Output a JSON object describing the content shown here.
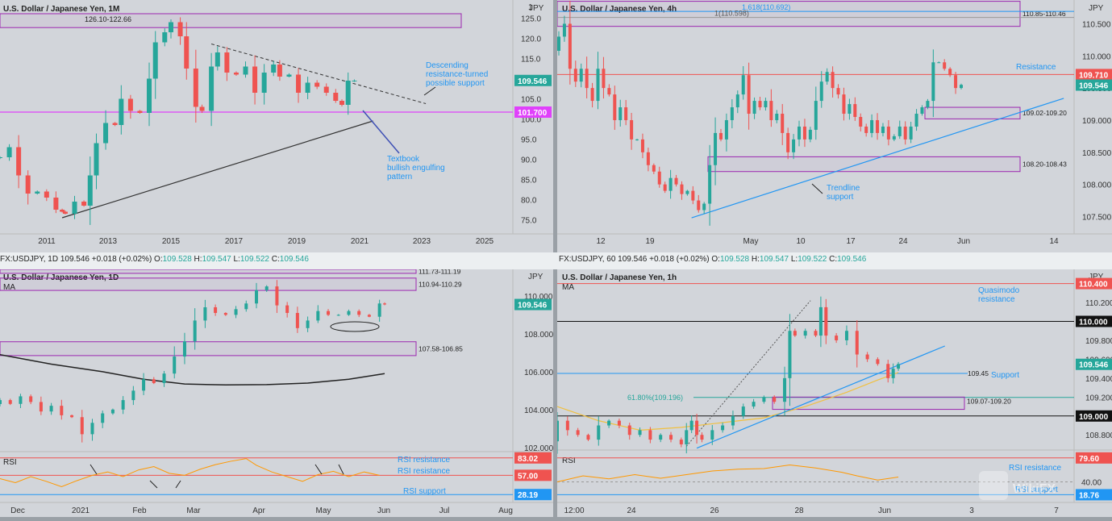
{
  "chart_data": [
    {
      "id": "monthly",
      "type": "candlestick",
      "title": "U.S. Dollar / Japanese Yen, 1M",
      "unit_label": "JPY",
      "y_ticks": [
        125.0,
        120.0,
        115.0,
        110.0,
        105.0,
        100.0,
        95.0,
        90.0,
        85.0,
        80.0,
        75.0
      ],
      "ylim": [
        71.5,
        129.5
      ],
      "y_label_top": "1",
      "x_ticks": [
        "2011",
        "2013",
        "2015",
        "2017",
        "2019",
        "2021",
        "2023",
        "2025"
      ],
      "xlim": [
        2010.0,
        2026.5
      ],
      "price_close": 109.546,
      "level_line": 101.7,
      "zone": {
        "label": "126.10-122.66",
        "high": 126.1,
        "low": 122.66
      },
      "trendline_up": [
        {
          "x": 2012.0,
          "y": 75.5
        },
        {
          "x": 2022.0,
          "y": 99.5
        }
      ],
      "trendline_down": [
        {
          "x": 2016.8,
          "y": 118.6
        },
        {
          "x": 2023.7,
          "y": 103.8
        }
      ],
      "annotations": [
        "Descending resistance-turned possible support",
        "Textbook bullish engulfing pattern"
      ],
      "candles": [
        [
          2010.0,
          90.5
        ],
        [
          2010.3,
          93.0
        ],
        [
          2010.6,
          86.0
        ],
        [
          2010.9,
          81.5
        ],
        [
          2011.2,
          82.0
        ],
        [
          2011.5,
          80.5
        ],
        [
          2011.8,
          77.5
        ],
        [
          2012.0,
          77.0
        ],
        [
          2012.1,
          76.5
        ],
        [
          2012.4,
          79.5
        ],
        [
          2012.7,
          78.5
        ],
        [
          2012.9,
          86.0
        ],
        [
          2013.1,
          94.0
        ],
        [
          2013.4,
          99.0
        ],
        [
          2013.7,
          98.5
        ],
        [
          2013.9,
          105.0
        ],
        [
          2014.2,
          102.0
        ],
        [
          2014.5,
          101.5
        ],
        [
          2014.8,
          110.0
        ],
        [
          2015.0,
          119.0
        ],
        [
          2015.3,
          121.5
        ],
        [
          2015.5,
          124.0
        ],
        [
          2015.8,
          120.5
        ],
        [
          2016.0,
          112.5
        ],
        [
          2016.3,
          103.0
        ],
        [
          2016.5,
          102.0
        ],
        [
          2016.8,
          113.0
        ],
        [
          2017.0,
          116.5
        ],
        [
          2017.3,
          111.5
        ],
        [
          2017.6,
          111.0
        ],
        [
          2017.9,
          113.0
        ],
        [
          2018.2,
          106.5
        ],
        [
          2018.5,
          111.5
        ],
        [
          2018.8,
          113.5
        ],
        [
          2019.0,
          110.5
        ],
        [
          2019.3,
          111.0
        ],
        [
          2019.6,
          106.5
        ],
        [
          2019.9,
          109.0
        ],
        [
          2020.2,
          108.0
        ],
        [
          2020.5,
          106.5
        ],
        [
          2020.8,
          104.5
        ],
        [
          2021.0,
          103.5
        ],
        [
          2021.2,
          109.5
        ],
        [
          2021.4,
          109.5
        ]
      ]
    },
    {
      "id": "h4",
      "type": "candlestick",
      "title": "U.S. Dollar / Japanese Yen, 4h",
      "unit_label": "JPY",
      "y_ticks": [
        110.5,
        110.0,
        109.5,
        109.0,
        108.5,
        108.0,
        107.5
      ],
      "ylim": [
        107.23,
        110.87
      ],
      "x_ticks": [
        "12",
        "19",
        "May",
        "10",
        "17",
        "24",
        "Jun",
        "14"
      ],
      "xlim": [
        0,
        100
      ],
      "price_close": 109.546,
      "level_line": 109.71,
      "fib_levels": [
        {
          "label": "1.618(110.692)",
          "value": 110.692
        },
        {
          "label": "1(110.598)",
          "value": 110.598
        }
      ],
      "zones": [
        {
          "label": "110.85-110.46",
          "high": 110.85,
          "low": 110.46
        },
        {
          "label": "109.02-109.20",
          "high": 109.2,
          "low": 109.02
        },
        {
          "label": "108.20-108.43",
          "high": 108.43,
          "low": 108.2
        }
      ],
      "trendline": [
        {
          "x": 26.0,
          "y": 107.48
        },
        {
          "x": 98.0,
          "y": 109.34
        }
      ],
      "annotations": [
        "Resistance",
        "Trendline support"
      ],
      "candles": [
        [
          0,
          110.3
        ],
        [
          1,
          110.5
        ],
        [
          2,
          109.8
        ],
        [
          3,
          109.6
        ],
        [
          4,
          109.8
        ],
        [
          5,
          109.5
        ],
        [
          6,
          109.3
        ],
        [
          7,
          109.8
        ],
        [
          8,
          109.5
        ],
        [
          9,
          109.4
        ],
        [
          10,
          109.0
        ],
        [
          11,
          109.2
        ],
        [
          12,
          109.0
        ],
        [
          13,
          108.7
        ],
        [
          14,
          108.7
        ],
        [
          15,
          108.5
        ],
        [
          16,
          108.3
        ],
        [
          17,
          108.2
        ],
        [
          18,
          108.0
        ],
        [
          19,
          107.9
        ],
        [
          20,
          108.1
        ],
        [
          21,
          108.0
        ],
        [
          22,
          107.85
        ],
        [
          23,
          107.9
        ],
        [
          24,
          107.75
        ],
        [
          25,
          107.6
        ],
        [
          26,
          107.7
        ],
        [
          27,
          108.3
        ],
        [
          28,
          108.8
        ],
        [
          29,
          108.7
        ],
        [
          30,
          109.0
        ],
        [
          31,
          109.2
        ],
        [
          32,
          109.4
        ],
        [
          33,
          109.7
        ],
        [
          34,
          109.1
        ],
        [
          35,
          109.3
        ],
        [
          36,
          109.2
        ],
        [
          37,
          109.3
        ],
        [
          38,
          109.0
        ],
        [
          39,
          109.1
        ],
        [
          40,
          108.8
        ],
        [
          41,
          108.5
        ],
        [
          42,
          108.7
        ],
        [
          43,
          108.9
        ],
        [
          44,
          108.7
        ],
        [
          45,
          108.85
        ],
        [
          46,
          109.3
        ],
        [
          47,
          109.6
        ],
        [
          48,
          109.75
        ],
        [
          49,
          109.5
        ],
        [
          50,
          109.4
        ],
        [
          51,
          109.1
        ],
        [
          52,
          109.25
        ],
        [
          53,
          109.05
        ],
        [
          54,
          108.9
        ],
        [
          55,
          108.8
        ],
        [
          56,
          109.0
        ],
        [
          57,
          108.8
        ],
        [
          58,
          108.9
        ],
        [
          59,
          108.7
        ],
        [
          60,
          108.75
        ],
        [
          61,
          108.9
        ],
        [
          62,
          108.7
        ],
        [
          63,
          108.9
        ],
        [
          64,
          109.1
        ],
        [
          65,
          109.2
        ],
        [
          66,
          109.3
        ],
        [
          67,
          109.9
        ],
        [
          68,
          109.9
        ],
        [
          69,
          109.8
        ],
        [
          70,
          109.7
        ],
        [
          71,
          109.5
        ],
        [
          72,
          109.55
        ]
      ]
    },
    {
      "id": "daily",
      "type": "candlestick",
      "title": "U.S. Dollar / Japanese Yen, 1D",
      "indicator_label": "MA",
      "unit_label": "JPY",
      "ticker_line": {
        "symbol": "FX:USDJPY, 1D",
        "last": "109.546",
        "change": "+0.018 (+0.02%)",
        "o": "109.528",
        "h": "109.547",
        "l": "109.522",
        "c": "109.546"
      },
      "y_ticks": [
        110.0,
        108.0,
        106.0,
        104.0,
        102.0
      ],
      "ylim": [
        101.78,
        111.4
      ],
      "x_ticks": [
        "Dec",
        "2021",
        "Feb",
        "Mar",
        "Apr",
        "May",
        "Jun",
        "Jul",
        "Aug"
      ],
      "xlim": [
        0,
        100
      ],
      "price_close": 109.546,
      "zones": [
        {
          "label": "111.73-111.19",
          "high": 111.73,
          "low": 111.19
        },
        {
          "label": "110.94-110.29",
          "high": 110.94,
          "low": 110.29
        },
        {
          "label": "107.58-106.85",
          "high": 107.58,
          "low": 106.85
        }
      ],
      "moving_average": [
        [
          0,
          106.9
        ],
        [
          10,
          106.4
        ],
        [
          20,
          106.0
        ],
        [
          28,
          105.6
        ],
        [
          36,
          105.35
        ],
        [
          44,
          105.3
        ],
        [
          52,
          105.32
        ],
        [
          60,
          105.4
        ],
        [
          68,
          105.6
        ],
        [
          75,
          105.9
        ]
      ],
      "candles": [
        [
          0,
          104.5
        ],
        [
          2,
          104.3
        ],
        [
          4,
          104.7
        ],
        [
          6,
          104.4
        ],
        [
          8,
          103.9
        ],
        [
          10,
          104.2
        ],
        [
          12,
          103.7
        ],
        [
          14,
          103.6
        ],
        [
          16,
          102.7
        ],
        [
          18,
          103.3
        ],
        [
          20,
          103.8
        ],
        [
          22,
          104.0
        ],
        [
          24,
          104.5
        ],
        [
          26,
          105.0
        ],
        [
          28,
          105.6
        ],
        [
          30,
          105.4
        ],
        [
          32,
          105.9
        ],
        [
          34,
          106.8
        ],
        [
          36,
          107.6
        ],
        [
          38,
          108.7
        ],
        [
          40,
          109.4
        ],
        [
          42,
          109.1
        ],
        [
          44,
          109.0
        ],
        [
          46,
          109.3
        ],
        [
          48,
          109.6
        ],
        [
          50,
          110.3
        ],
        [
          52,
          110.5
        ],
        [
          54,
          109.5
        ],
        [
          56,
          109.1
        ],
        [
          58,
          108.3
        ],
        [
          60,
          108.7
        ],
        [
          62,
          109.2
        ],
        [
          64,
          109.0
        ],
        [
          66,
          109.0
        ],
        [
          68,
          109.2
        ],
        [
          70,
          109.0
        ],
        [
          72,
          108.9
        ],
        [
          74,
          109.6
        ],
        [
          75,
          109.55
        ]
      ]
    },
    {
      "id": "h1",
      "type": "candlestick",
      "title": "U.S. Dollar / Japanese Yen, 1h",
      "indicator_label": "MA",
      "unit_label": "JPY",
      "ticker_line": {
        "symbol": "FX:USDJPY, 60",
        "last": "109.546",
        "change": "+0.018 (+0.02%)",
        "o": "109.528",
        "h": "109.547",
        "l": "109.522",
        "c": "109.546"
      },
      "y_ticks": [
        110.2,
        110.0,
        109.8,
        109.6,
        109.4,
        109.2,
        109.0,
        108.8
      ],
      "ylim": [
        108.64,
        110.55
      ],
      "x_ticks": [
        "12:00",
        "24",
        "26",
        "28",
        "Jun",
        "3",
        "7"
      ],
      "xlim": [
        0,
        100
      ],
      "price_close": 109.546,
      "levels": [
        {
          "value": 110.4,
          "label": "110.400"
        },
        {
          "value": 110.0,
          "label": "110.000"
        },
        {
          "value": 109.0,
          "label": "109.000"
        }
      ],
      "support_line": {
        "value": 109.45,
        "label": "109.45"
      },
      "fib_line": {
        "value": 109.196,
        "label": "61.80%(109.196)"
      },
      "zone": {
        "label": "109.07-109.20",
        "high": 109.2,
        "low": 109.07
      },
      "trendline": [
        {
          "x": 27.0,
          "y": 108.66
        },
        {
          "x": 75.0,
          "y": 109.74
        }
      ],
      "dotted_trend": [
        {
          "x": 25.0,
          "y": 108.68
        },
        {
          "x": 49.0,
          "y": 110.22
        }
      ],
      "moving_average": [
        [
          0,
          109.1
        ],
        [
          8,
          108.95
        ],
        [
          16,
          108.85
        ],
        [
          24,
          108.88
        ],
        [
          32,
          108.93
        ],
        [
          40,
          108.98
        ],
        [
          48,
          109.1
        ],
        [
          56,
          109.25
        ],
        [
          62,
          109.38
        ],
        [
          66,
          109.46
        ]
      ],
      "annotations": [
        "Quasimodo resistance",
        "Support"
      ],
      "candles": [
        [
          0,
          108.95
        ],
        [
          2,
          108.85
        ],
        [
          4,
          108.8
        ],
        [
          6,
          108.75
        ],
        [
          8,
          108.9
        ],
        [
          10,
          108.95
        ],
        [
          12,
          108.9
        ],
        [
          14,
          108.8
        ],
        [
          16,
          108.85
        ],
        [
          18,
          108.75
        ],
        [
          20,
          108.8
        ],
        [
          22,
          108.75
        ],
        [
          24,
          108.7
        ],
        [
          25,
          108.85
        ],
        [
          26,
          108.95
        ],
        [
          27,
          108.8
        ],
        [
          28,
          108.75
        ],
        [
          30,
          108.85
        ],
        [
          32,
          108.9
        ],
        [
          34,
          109.0
        ],
        [
          36,
          109.1
        ],
        [
          38,
          109.15
        ],
        [
          40,
          109.2
        ],
        [
          42,
          109.15
        ],
        [
          44,
          109.4
        ],
        [
          45,
          109.9
        ],
        [
          46,
          109.85
        ],
        [
          48,
          109.9
        ],
        [
          50,
          109.85
        ],
        [
          51,
          110.15
        ],
        [
          52,
          109.85
        ],
        [
          54,
          109.8
        ],
        [
          56,
          109.9
        ],
        [
          58,
          109.65
        ],
        [
          60,
          109.6
        ],
        [
          62,
          109.55
        ],
        [
          64,
          109.4
        ],
        [
          65,
          109.5
        ],
        [
          66,
          109.55
        ]
      ]
    }
  ],
  "rsi_daily": {
    "label": "RSI",
    "annotations": [
      "RSI resistance",
      "RSI resistance",
      "RSI support"
    ],
    "levels": [
      {
        "value": 83.02,
        "label": "83.02"
      },
      {
        "value": 57.0,
        "label": "57.00"
      },
      {
        "value": 28.19,
        "label": "28.19"
      }
    ],
    "series": [
      [
        0,
        52
      ],
      [
        3,
        46
      ],
      [
        6,
        55
      ],
      [
        9,
        48
      ],
      [
        12,
        40
      ],
      [
        15,
        49
      ],
      [
        18,
        57
      ],
      [
        21,
        62
      ],
      [
        24,
        55
      ],
      [
        27,
        65
      ],
      [
        30,
        70
      ],
      [
        33,
        60
      ],
      [
        36,
        57
      ],
      [
        39,
        66
      ],
      [
        42,
        73
      ],
      [
        45,
        78
      ],
      [
        48,
        82
      ],
      [
        50,
        72
      ],
      [
        53,
        62
      ],
      [
        56,
        55
      ],
      [
        59,
        48
      ],
      [
        62,
        58
      ],
      [
        65,
        63
      ],
      [
        68,
        55
      ],
      [
        71,
        62
      ],
      [
        74,
        57
      ]
    ]
  },
  "rsi_hourly": {
    "label": "RSI",
    "annotations": [
      "RSI resistance",
      "RSI support"
    ],
    "levels": [
      {
        "value": 79.6,
        "label": "79.60"
      },
      {
        "value": 40.0,
        "label": "40.00"
      },
      {
        "value": 18.76,
        "label": "18.76"
      }
    ],
    "series": [
      [
        0,
        40
      ],
      [
        5,
        50
      ],
      [
        10,
        45
      ],
      [
        15,
        52
      ],
      [
        20,
        46
      ],
      [
        25,
        52
      ],
      [
        30,
        58
      ],
      [
        35,
        61
      ],
      [
        40,
        62
      ],
      [
        45,
        68
      ],
      [
        50,
        63
      ],
      [
        55,
        56
      ],
      [
        58,
        50
      ],
      [
        62,
        43
      ],
      [
        66,
        48
      ]
    ]
  },
  "h4_ticker_line": {
    "symbol": "FX:USDJPY, 1D",
    "last": "109.546",
    "change": "+0.018 (+0.02%)",
    "o": "109.528",
    "h": "109.547",
    "l": "109.522",
    "c": "109.546"
  },
  "h1_ticker_line": {
    "symbol": "FX:USDJPY, 60",
    "last": "109.546",
    "change": "+0.018 (+0.02%)",
    "o": "109.528",
    "h": "109.547",
    "l": "109.522",
    "c": "109.546"
  },
  "colors": {
    "background": "#d2d5da",
    "up": "#26a69a",
    "down": "#ef5350",
    "zone": "#9c27b0",
    "accent": "#2196f3",
    "rsi": "#ff9800"
  },
  "watermark_text": "WikiFX"
}
